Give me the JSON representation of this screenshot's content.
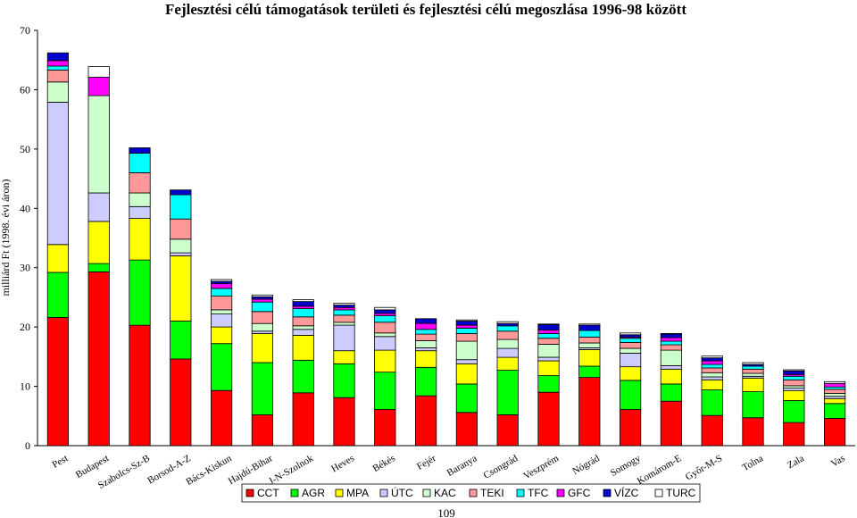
{
  "page_number": "109",
  "chart_data": {
    "type": "bar",
    "stacked": true,
    "title": "Fejlesztési célú támogatások területi és fejlesztési célú megoszlása 1996-98 között",
    "ylabel": "milliárd Ft (1998. évi áron)",
    "xlabel": "",
    "ylim": [
      0,
      70
    ],
    "yticks": [
      0,
      10,
      20,
      30,
      40,
      50,
      60,
      70
    ],
    "grid": false,
    "legend_position": "bottom",
    "categories": [
      "Pest",
      "Budapest",
      "Szabolcs-Sz-B",
      "Borsod-A-Z",
      "Bács-Kiskun",
      "Hajdú-Bihar",
      "J-N-Szolnok",
      "Heves",
      "Békés",
      "Fejér",
      "Baranya",
      "Csongrád",
      "Veszprém",
      "Nógrád",
      "Somogy",
      "Komárom-E",
      "Győr-M-S",
      "Tolna",
      "Zala",
      "Vas"
    ],
    "series": [
      {
        "name": "CCT",
        "color": "#ff0000",
        "values": [
          21.6,
          29.3,
          20.3,
          14.6,
          9.3,
          5.2,
          8.9,
          8.1,
          6.1,
          8.4,
          5.6,
          5.2,
          9.0,
          11.5,
          6.1,
          7.5,
          5.1,
          4.7,
          3.9,
          4.6
        ]
      },
      {
        "name": "AGR",
        "color": "#00ff00",
        "values": [
          7.6,
          1.4,
          11.0,
          6.4,
          7.9,
          8.8,
          5.5,
          5.7,
          6.3,
          4.8,
          4.8,
          7.5,
          2.8,
          1.9,
          4.9,
          2.9,
          4.3,
          4.4,
          3.7,
          2.5
        ]
      },
      {
        "name": "MPA",
        "color": "#ffff00",
        "values": [
          4.7,
          7.1,
          7.0,
          11.0,
          2.8,
          4.9,
          4.2,
          2.2,
          3.7,
          2.8,
          3.4,
          2.2,
          2.5,
          2.8,
          2.3,
          2.5,
          1.7,
          2.3,
          1.7,
          0.8
        ]
      },
      {
        "name": "ÚTC",
        "color": "#ccccff",
        "values": [
          24.0,
          4.8,
          2.0,
          0.5,
          2.2,
          0.4,
          1.0,
          4.3,
          2.3,
          0.5,
          0.7,
          1.5,
          0.6,
          0.3,
          2.3,
          0.6,
          0.5,
          0.3,
          0.4,
          0.4
        ]
      },
      {
        "name": "KAC",
        "color": "#ccffcc",
        "values": [
          3.4,
          16.4,
          2.3,
          2.3,
          0.7,
          1.3,
          0.6,
          0.5,
          0.6,
          1.2,
          3.1,
          1.5,
          2.2,
          0.8,
          0.8,
          2.6,
          0.7,
          0.5,
          0.4,
          0.5
        ]
      },
      {
        "name": "TEKI",
        "color": "#ff9999",
        "values": [
          2.0,
          0.0,
          3.4,
          3.4,
          2.3,
          2.0,
          1.5,
          1.2,
          1.8,
          1.1,
          1.3,
          1.4,
          1.0,
          1.0,
          1.0,
          0.9,
          0.8,
          0.7,
          1.0,
          0.7
        ]
      },
      {
        "name": "TFC",
        "color": "#00ffff",
        "values": [
          0.7,
          0.0,
          3.3,
          4.1,
          1.3,
          1.6,
          1.4,
          0.9,
          1.1,
          0.8,
          0.9,
          0.9,
          0.8,
          1.1,
          0.7,
          0.6,
          0.6,
          0.5,
          0.6,
          0.4
        ]
      },
      {
        "name": "GFC",
        "color": "#ff00ff",
        "values": [
          0.9,
          3.1,
          0.0,
          0.0,
          0.8,
          0.5,
          0.4,
          0.4,
          0.4,
          1.0,
          0.5,
          0.0,
          0.6,
          0.0,
          0.2,
          0.6,
          0.6,
          0.0,
          0.3,
          0.6
        ]
      },
      {
        "name": "VÍZC",
        "color": "#0000cc",
        "values": [
          1.3,
          0.0,
          0.9,
          0.8,
          0.4,
          0.4,
          0.8,
          0.4,
          0.6,
          0.8,
          0.7,
          0.4,
          0.9,
          0.9,
          0.4,
          0.6,
          0.5,
          0.3,
          0.6,
          0.0
        ]
      },
      {
        "name": "TURC",
        "color": "#ffffff",
        "values": [
          0.0,
          1.8,
          0.0,
          0.0,
          0.3,
          0.3,
          0.3,
          0.3,
          0.4,
          0.0,
          0.2,
          0.3,
          0.1,
          0.2,
          0.3,
          0.1,
          0.3,
          0.3,
          0.2,
          0.3
        ]
      }
    ]
  }
}
